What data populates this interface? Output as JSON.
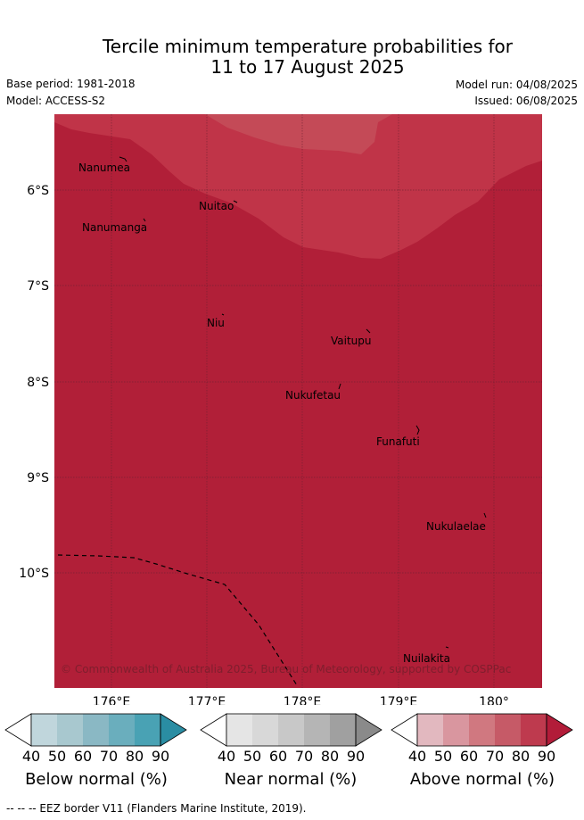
{
  "header": {
    "title_line1": "Tercile minimum temperature probabilities for",
    "title_line2": "11 to 17 August 2025",
    "base_period": "Base period: 1981-2018",
    "model": "Model: ACCESS-S2",
    "model_run": "Model run: 04/08/2025",
    "issued": "Issued: 06/08/2025"
  },
  "map": {
    "lat_labels": [
      "6°S",
      "7°S",
      "8°S",
      "9°S",
      "10°S"
    ],
    "lon_labels": [
      "176°E",
      "177°E",
      "178°E",
      "179°E",
      "180°"
    ],
    "islands": [
      "Nanumea",
      "Nuitao",
      "Nanumanga",
      "Niu",
      "Vaitupu",
      "Nukufetau",
      "Funafuti",
      "Nukulaelae",
      "Nuilakita"
    ],
    "copyright": "© Commonwealth of Australia 2025, Bureau of Meteorology, supported by COSPPac",
    "colors": {
      "above_80_90": "#b11f38",
      "above_70_80": "#c03448",
      "above_60_70": "#c44a57",
      "eez_border": "#000000",
      "grid": "#6b2030"
    }
  },
  "colorbars": [
    {
      "label": "Below normal (%)",
      "ticks": [
        "40",
        "50",
        "60",
        "70",
        "80",
        "90"
      ],
      "colors": [
        "#ffffff",
        "#c0d6dc",
        "#a8c8cf",
        "#8ab8c4",
        "#6aaebd",
        "#49a2b4",
        "#2a8da3"
      ]
    },
    {
      "label": "Near normal (%)",
      "ticks": [
        "40",
        "50",
        "60",
        "70",
        "80",
        "90"
      ],
      "colors": [
        "#ffffff",
        "#e5e5e5",
        "#d8d8d8",
        "#c8c8c8",
        "#b5b5b5",
        "#a0a0a0",
        "#8a8a8a"
      ]
    },
    {
      "label": "Above normal (%)",
      "ticks": [
        "40",
        "50",
        "60",
        "70",
        "80",
        "90"
      ],
      "colors": [
        "#ffffff",
        "#e2b8bf",
        "#d9969f",
        "#d07880",
        "#c65a67",
        "#be3a4e",
        "#b21c39"
      ]
    }
  ],
  "footer": {
    "legend": "--  --  -- EEZ border V11 (Flanders Marine Institute, 2019)."
  }
}
